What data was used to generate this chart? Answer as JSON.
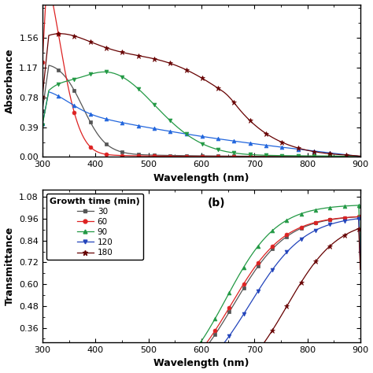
{
  "panel_a": {
    "xlabel": "Wavelength (nm)",
    "ylabel": "Absorbance",
    "xlim": [
      300,
      900
    ],
    "ylim": [
      0.0,
      2.0
    ],
    "yticks": [
      0.0,
      0.39,
      0.78,
      1.17,
      1.56
    ],
    "series": [
      {
        "label": "30",
        "color": "#555555",
        "marker": "s"
      },
      {
        "label": "60",
        "color": "#dd2222",
        "marker": "o"
      },
      {
        "label": "90",
        "color": "#2266dd",
        "marker": "^"
      },
      {
        "label": "120",
        "color": "#229944",
        "marker": "v"
      },
      {
        "label": "180",
        "color": "#660000",
        "marker": "*"
      }
    ]
  },
  "panel_b": {
    "xlabel": "Wavelength (nm)",
    "ylabel": "Transmittance",
    "xlim": [
      300,
      900
    ],
    "ylim": [
      0.28,
      1.12
    ],
    "yticks": [
      0.36,
      0.48,
      0.6,
      0.72,
      0.84,
      0.96,
      1.08
    ],
    "legend_title": "Growth time (min)",
    "legend_label_b": "(b)",
    "series": [
      {
        "label": "30",
        "color": "#555555",
        "marker": "s"
      },
      {
        "label": "60",
        "color": "#dd2222",
        "marker": "o"
      },
      {
        "label": "90",
        "color": "#229944",
        "marker": "^"
      },
      {
        "label": "120",
        "color": "#2244bb",
        "marker": "v"
      },
      {
        "label": "180",
        "color": "#660000",
        "marker": "*"
      }
    ]
  }
}
